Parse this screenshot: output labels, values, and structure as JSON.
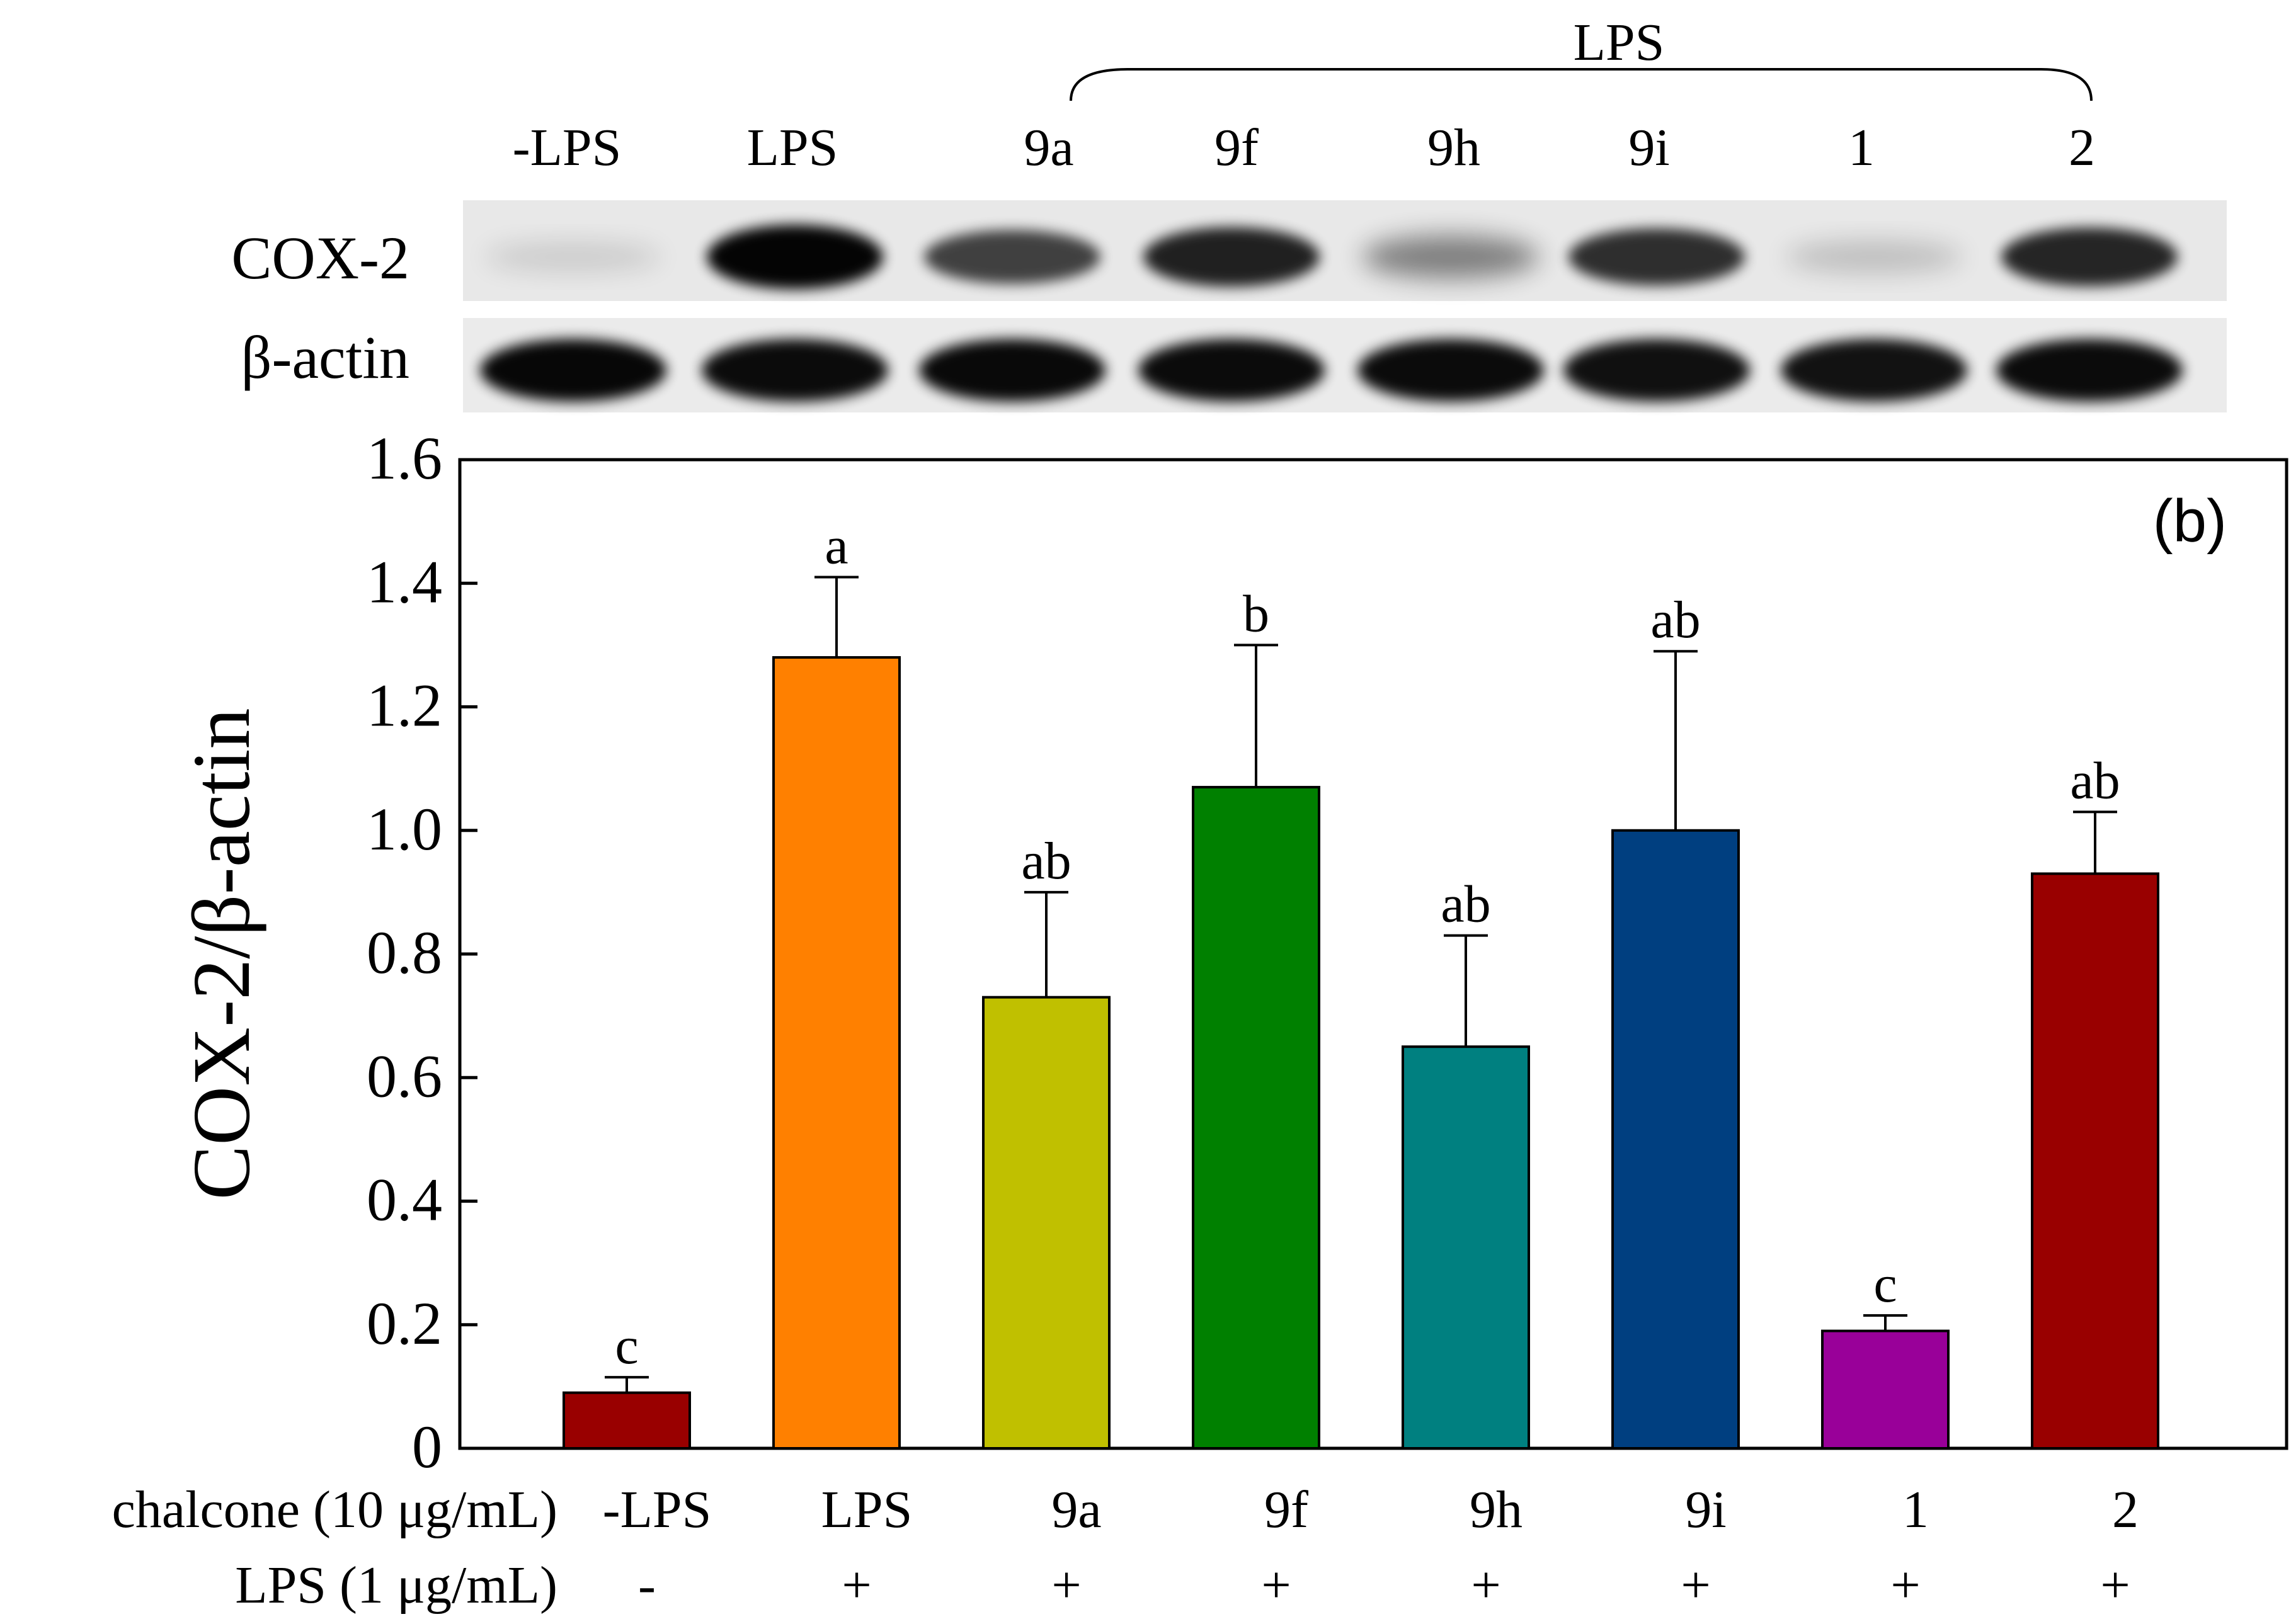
{
  "blot": {
    "group_label": "LPS",
    "lane_labels": [
      "-LPS",
      "LPS",
      "9a",
      "9f",
      "9h",
      "9i",
      "1",
      "2"
    ],
    "row_labels": [
      "COX-2",
      "β-actin"
    ],
    "cox2_intensity": [
      0.12,
      0.98,
      0.72,
      0.86,
      0.45,
      0.8,
      0.18,
      0.84
    ],
    "actin_intensity": [
      0.97,
      0.95,
      0.96,
      0.95,
      0.95,
      0.93,
      0.92,
      0.95
    ]
  },
  "chart_data": {
    "type": "bar",
    "panel_label": "(b)",
    "ylabel": "COX-2/β-actin",
    "xlabel": "",
    "ylim": [
      0,
      1.6
    ],
    "yticks": [
      0,
      0.2,
      0.4,
      0.6,
      0.8,
      1.0,
      1.2,
      1.4,
      1.6
    ],
    "ytick_labels": [
      "0",
      "0.2",
      "0.4",
      "0.6",
      "0.8",
      "1.0",
      "1.2",
      "1.4",
      "1.6"
    ],
    "grid": false,
    "categories": [
      "-LPS",
      "LPS",
      "9a",
      "9f",
      "9h",
      "9i",
      "1",
      "2"
    ],
    "values": [
      0.09,
      1.28,
      0.73,
      1.07,
      0.65,
      1.0,
      0.19,
      0.93
    ],
    "errors": [
      0.025,
      0.13,
      0.17,
      0.23,
      0.18,
      0.29,
      0.025,
      0.1
    ],
    "significance": [
      "c",
      "a",
      "ab",
      "b",
      "ab",
      "ab",
      "c",
      "ab"
    ],
    "colors": [
      "#990000",
      "#FF8000",
      "#C0C000",
      "#008000",
      "#008080",
      "#003F80",
      "#990099",
      "#990000"
    ],
    "row_labels": {
      "chalcone": "chalcone (10 μg/mL)",
      "lps": "LPS (1 μg/mL)"
    },
    "chalcone_row": [
      "-LPS",
      "LPS",
      "9a",
      "9f",
      "9h",
      "9i",
      "1",
      "2"
    ],
    "lps_row": [
      "-",
      "+",
      "+",
      "+",
      "+",
      "+",
      "+",
      "+"
    ]
  }
}
